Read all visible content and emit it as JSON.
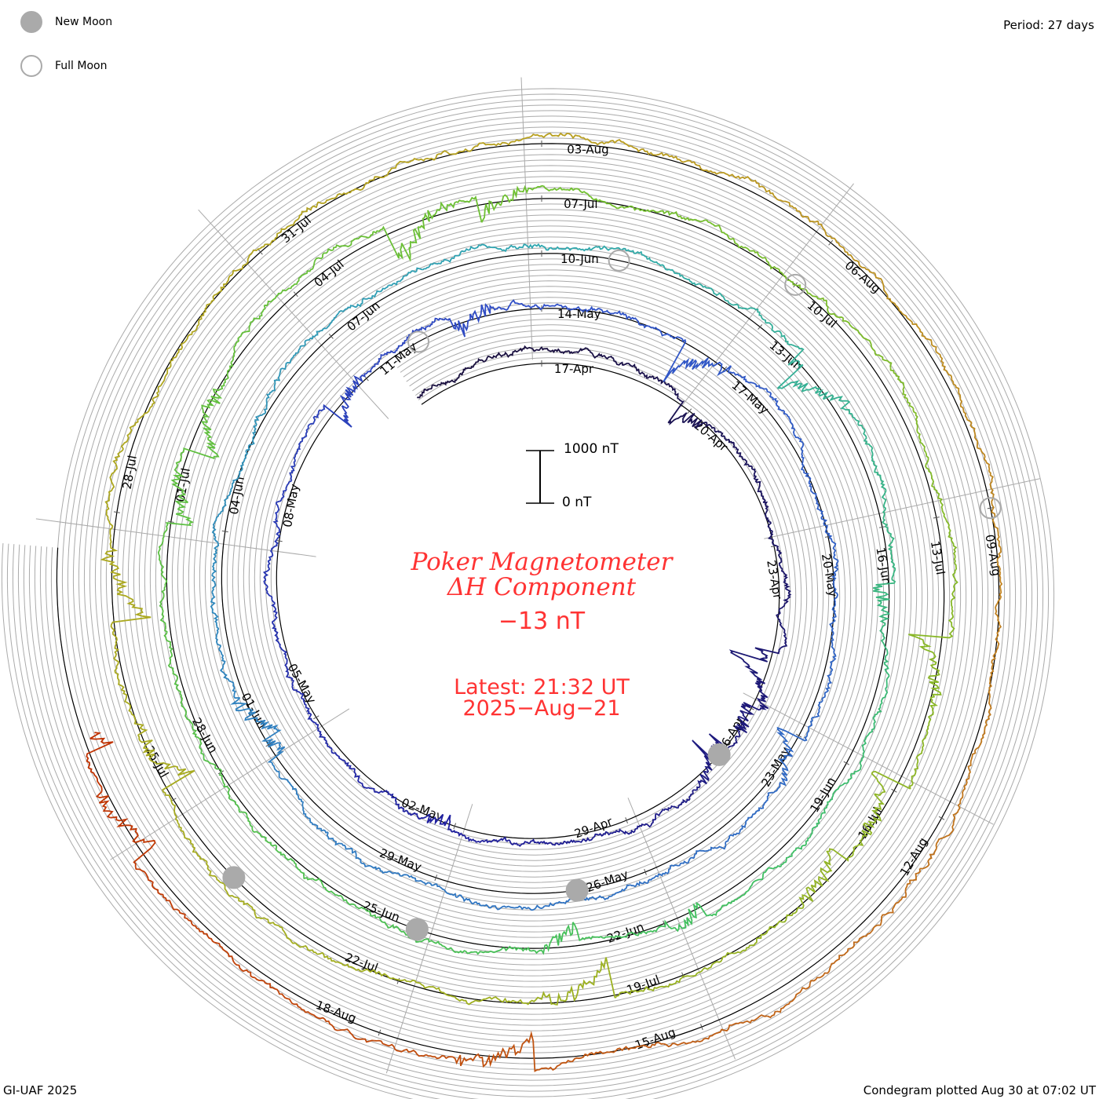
{
  "legend": {
    "new_moon": "New Moon",
    "full_moon": "Full Moon"
  },
  "period_label": "Period: 27 days",
  "footer_left": "GI-UAF 2025",
  "footer_right": "Condegram plotted Aug 30 at 07:02 UT",
  "center": {
    "title_line1": "Poker Magnetometer",
    "title_line2": "ΔH Component",
    "current_value": "−13 nT",
    "latest_line1": "Latest: 21:32 UT",
    "latest_line2": "2025−Aug−21"
  },
  "scale_bar": {
    "top_label": "1000 nT",
    "bottom_label": "0 nT",
    "top_value_nT": 1000,
    "bottom_value_nT": 0
  },
  "chart_data": {
    "type": "line",
    "subtype": "spiral condegram",
    "title": "Poker Magnetometer ΔH Component",
    "period_days": 27,
    "start_day": -2.5,
    "end_day": 126.9,
    "day0": "17-Apr",
    "tick_interval_days": 3,
    "tick_labels": [
      "17-Apr",
      "20-Apr",
      "23-Apr",
      "26-Apr",
      "29-Apr",
      "02-May",
      "05-May",
      "08-May",
      "11-May",
      "14-May",
      "17-May",
      "20-May",
      "23-May",
      "26-May",
      "29-May",
      "01-Jun",
      "04-Jun",
      "07-Jun",
      "10-Jun",
      "13-Jun",
      "16-Jun",
      "19-Jun",
      "22-Jun",
      "25-Jun",
      "28-Jun",
      "01-Jul",
      "04-Jul",
      "07-Jul",
      "10-Jul",
      "13-Jul",
      "16-Jul",
      "19-Jul",
      "22-Jul",
      "25-Jul",
      "28-Jul",
      "31-Jul",
      "03-Aug",
      "06-Aug",
      "09-Aug",
      "12-Aug",
      "15-Aug",
      "18-Aug"
    ],
    "new_moon_days": [
      10,
      40,
      69,
      98
    ],
    "full_moon_days": [
      25,
      55,
      84,
      114
    ],
    "units": "nT",
    "color_stops": [
      {
        "day": 0,
        "color": "#1a1040"
      },
      {
        "day": 15,
        "color": "#2020a0"
      },
      {
        "day": 27,
        "color": "#3050c8"
      },
      {
        "day": 45,
        "color": "#3080c0"
      },
      {
        "day": 54,
        "color": "#30a8b0"
      },
      {
        "day": 65,
        "color": "#40c060"
      },
      {
        "day": 81,
        "color": "#70c030"
      },
      {
        "day": 95,
        "color": "#a0b020"
      },
      {
        "day": 108,
        "color": "#b8a020"
      },
      {
        "day": 115,
        "color": "#c08020"
      },
      {
        "day": 122,
        "color": "#c05010"
      },
      {
        "day": 127,
        "color": "#c03000"
      }
    ]
  },
  "colors": {
    "title": "#ff3333",
    "grid": "#aaaaaa",
    "moon": "#aaaaaa"
  }
}
